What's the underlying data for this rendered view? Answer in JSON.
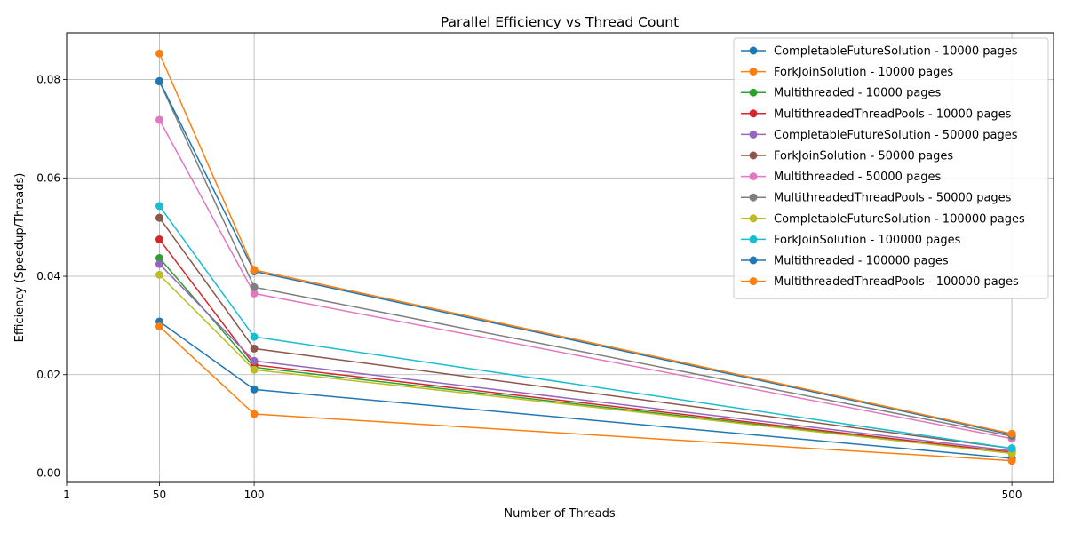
{
  "chart_data": {
    "type": "line",
    "title": "Parallel Efficiency vs Thread Count",
    "xlabel": "Number of Threads",
    "ylabel": "Efficiency (Speedup/Threads)",
    "x": [
      50,
      100,
      500
    ],
    "x_ticks": [
      1,
      50,
      100,
      500
    ],
    "x_tick_labels": [
      "1",
      "50",
      "100",
      "500"
    ],
    "xlim": [
      1,
      522
    ],
    "ylim": [
      -0.0019,
      0.0895
    ],
    "y_ticks": [
      0.0,
      0.02,
      0.04,
      0.06,
      0.08
    ],
    "y_tick_labels": [
      "0.00",
      "0.02",
      "0.04",
      "0.06",
      "0.08"
    ],
    "grid": true,
    "legend_position": "top-right",
    "series": [
      {
        "name": "CompletableFutureSolution - 10000 pages",
        "color": "#1f77b4",
        "values": [
          0.0308,
          0.017,
          0.003
        ]
      },
      {
        "name": "ForkJoinSolution - 10000 pages",
        "color": "#ff7f0e",
        "values": [
          0.0298,
          0.012,
          0.0025
        ]
      },
      {
        "name": "Multithreaded - 10000 pages",
        "color": "#2ca02c",
        "values": [
          0.0437,
          0.0215,
          0.004
        ]
      },
      {
        "name": "MultithreadedThreadPools - 10000 pages",
        "color": "#d62728",
        "values": [
          0.0475,
          0.022,
          0.0042
        ]
      },
      {
        "name": "CompletableFutureSolution - 50000 pages",
        "color": "#9467bd",
        "values": [
          0.0425,
          0.0228,
          0.0045
        ]
      },
      {
        "name": "ForkJoinSolution - 50000 pages",
        "color": "#8c564b",
        "values": [
          0.0519,
          0.0253,
          0.005
        ]
      },
      {
        "name": "Multithreaded - 50000 pages",
        "color": "#e377c2",
        "values": [
          0.0718,
          0.0365,
          0.007
        ]
      },
      {
        "name": "MultithreadedThreadPools - 50000 pages",
        "color": "#7f7f7f",
        "values": [
          0.0796,
          0.0378,
          0.0075
        ]
      },
      {
        "name": "CompletableFutureSolution - 100000 pages",
        "color": "#bcbd22",
        "values": [
          0.0403,
          0.021,
          0.004
        ]
      },
      {
        "name": "ForkJoinSolution - 100000 pages",
        "color": "#17becf",
        "values": [
          0.0543,
          0.0277,
          0.005
        ]
      },
      {
        "name": "Multithreaded - 100000 pages",
        "color": "#1f77b4",
        "values": [
          0.0797,
          0.041,
          0.0078
        ]
      },
      {
        "name": "MultithreadedThreadPools - 100000 pages",
        "color": "#ff7f0e",
        "values": [
          0.0853,
          0.0413,
          0.008
        ]
      }
    ]
  }
}
